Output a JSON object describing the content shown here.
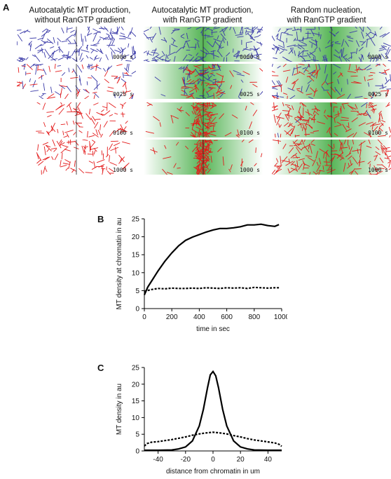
{
  "panel_a": {
    "letter": "A",
    "columns": [
      {
        "title_line1": "Autocatalytic MT production,",
        "title_line2": "without RanGTP gradient",
        "gradient": false,
        "time_labels": [
          "0000  s",
          "0025  s",
          "0100  s",
          "1000  s"
        ]
      },
      {
        "title_line1": "Autocatalytic MT production,",
        "title_line2": "with RanGTP gradient",
        "gradient": true,
        "time_labels": [
          "0000  s",
          "0025  s",
          "0100  s",
          "1000  s"
        ]
      },
      {
        "title_line1": "Random nucleation,",
        "title_line2": "with RanGTP gradient",
        "gradient": true,
        "time_labels": [
          "0000  s",
          "0025  s",
          "0100  s",
          "1000  s"
        ]
      }
    ],
    "colors": {
      "blue_mt": "#3a3aa8",
      "red_mt": "#e31b1b",
      "gradient": "#3aa83a"
    }
  },
  "chart_data": [
    {
      "panel": "B",
      "type": "line",
      "xlabel": "time in sec",
      "ylabel": "MT density at chromatin in au",
      "xlim": [
        0,
        1000
      ],
      "ylim": [
        0,
        25
      ],
      "xticks": [
        0,
        200,
        400,
        600,
        800,
        1000
      ],
      "yticks": [
        0,
        5,
        10,
        15,
        20,
        25
      ],
      "series": [
        {
          "style": "solid",
          "x": [
            0,
            25,
            50,
            100,
            150,
            200,
            250,
            300,
            350,
            400,
            450,
            500,
            550,
            600,
            650,
            700,
            750,
            800,
            850,
            900,
            950,
            980
          ],
          "y": [
            3.8,
            6.0,
            7.5,
            10.5,
            13.2,
            15.5,
            17.5,
            19.0,
            19.9,
            20.6,
            21.3,
            21.9,
            22.3,
            22.3,
            22.5,
            22.8,
            23.3,
            23.3,
            23.5,
            23.1,
            22.9,
            23.4
          ]
        },
        {
          "style": "dashed",
          "x": [
            0,
            50,
            100,
            150,
            200,
            250,
            300,
            350,
            400,
            450,
            500,
            550,
            600,
            650,
            700,
            750,
            800,
            850,
            900,
            950,
            980
          ],
          "y": [
            4.8,
            5.3,
            5.6,
            5.5,
            5.7,
            5.6,
            5.6,
            5.7,
            5.6,
            5.8,
            5.7,
            5.6,
            5.8,
            5.7,
            5.8,
            5.6,
            5.9,
            5.8,
            5.7,
            5.8,
            5.8
          ]
        }
      ]
    },
    {
      "panel": "C",
      "type": "line",
      "xlabel": "distance from chromatin in um",
      "ylabel": "MT density in au",
      "xlim": [
        -50,
        50
      ],
      "ylim": [
        0,
        25
      ],
      "xticks": [
        -40,
        -20,
        0,
        20,
        40
      ],
      "yticks": [
        0,
        5,
        10,
        15,
        20,
        25
      ],
      "series": [
        {
          "style": "solid",
          "x": [
            -50,
            -40,
            -30,
            -25,
            -20,
            -15,
            -10,
            -7,
            -4,
            -2,
            0,
            2,
            4,
            7,
            10,
            15,
            20,
            25,
            30,
            40,
            50
          ],
          "y": [
            0.2,
            0.2,
            0.3,
            0.6,
            1.2,
            3.0,
            7.5,
            12.5,
            19.0,
            22.8,
            23.8,
            22.5,
            19.0,
            12.5,
            7.5,
            3.0,
            1.2,
            0.6,
            0.3,
            0.2,
            0.2
          ]
        },
        {
          "style": "dashed",
          "x": [
            -50,
            -48,
            -45,
            -40,
            -35,
            -30,
            -25,
            -20,
            -15,
            -10,
            -5,
            0,
            5,
            10,
            15,
            20,
            25,
            30,
            35,
            40,
            45,
            48,
            50
          ],
          "y": [
            1.5,
            2.2,
            2.6,
            2.8,
            3.1,
            3.4,
            3.8,
            4.2,
            4.7,
            5.1,
            5.4,
            5.6,
            5.4,
            5.1,
            4.6,
            4.2,
            3.7,
            3.3,
            3.0,
            2.7,
            2.4,
            2.0,
            1.4
          ]
        }
      ]
    }
  ]
}
